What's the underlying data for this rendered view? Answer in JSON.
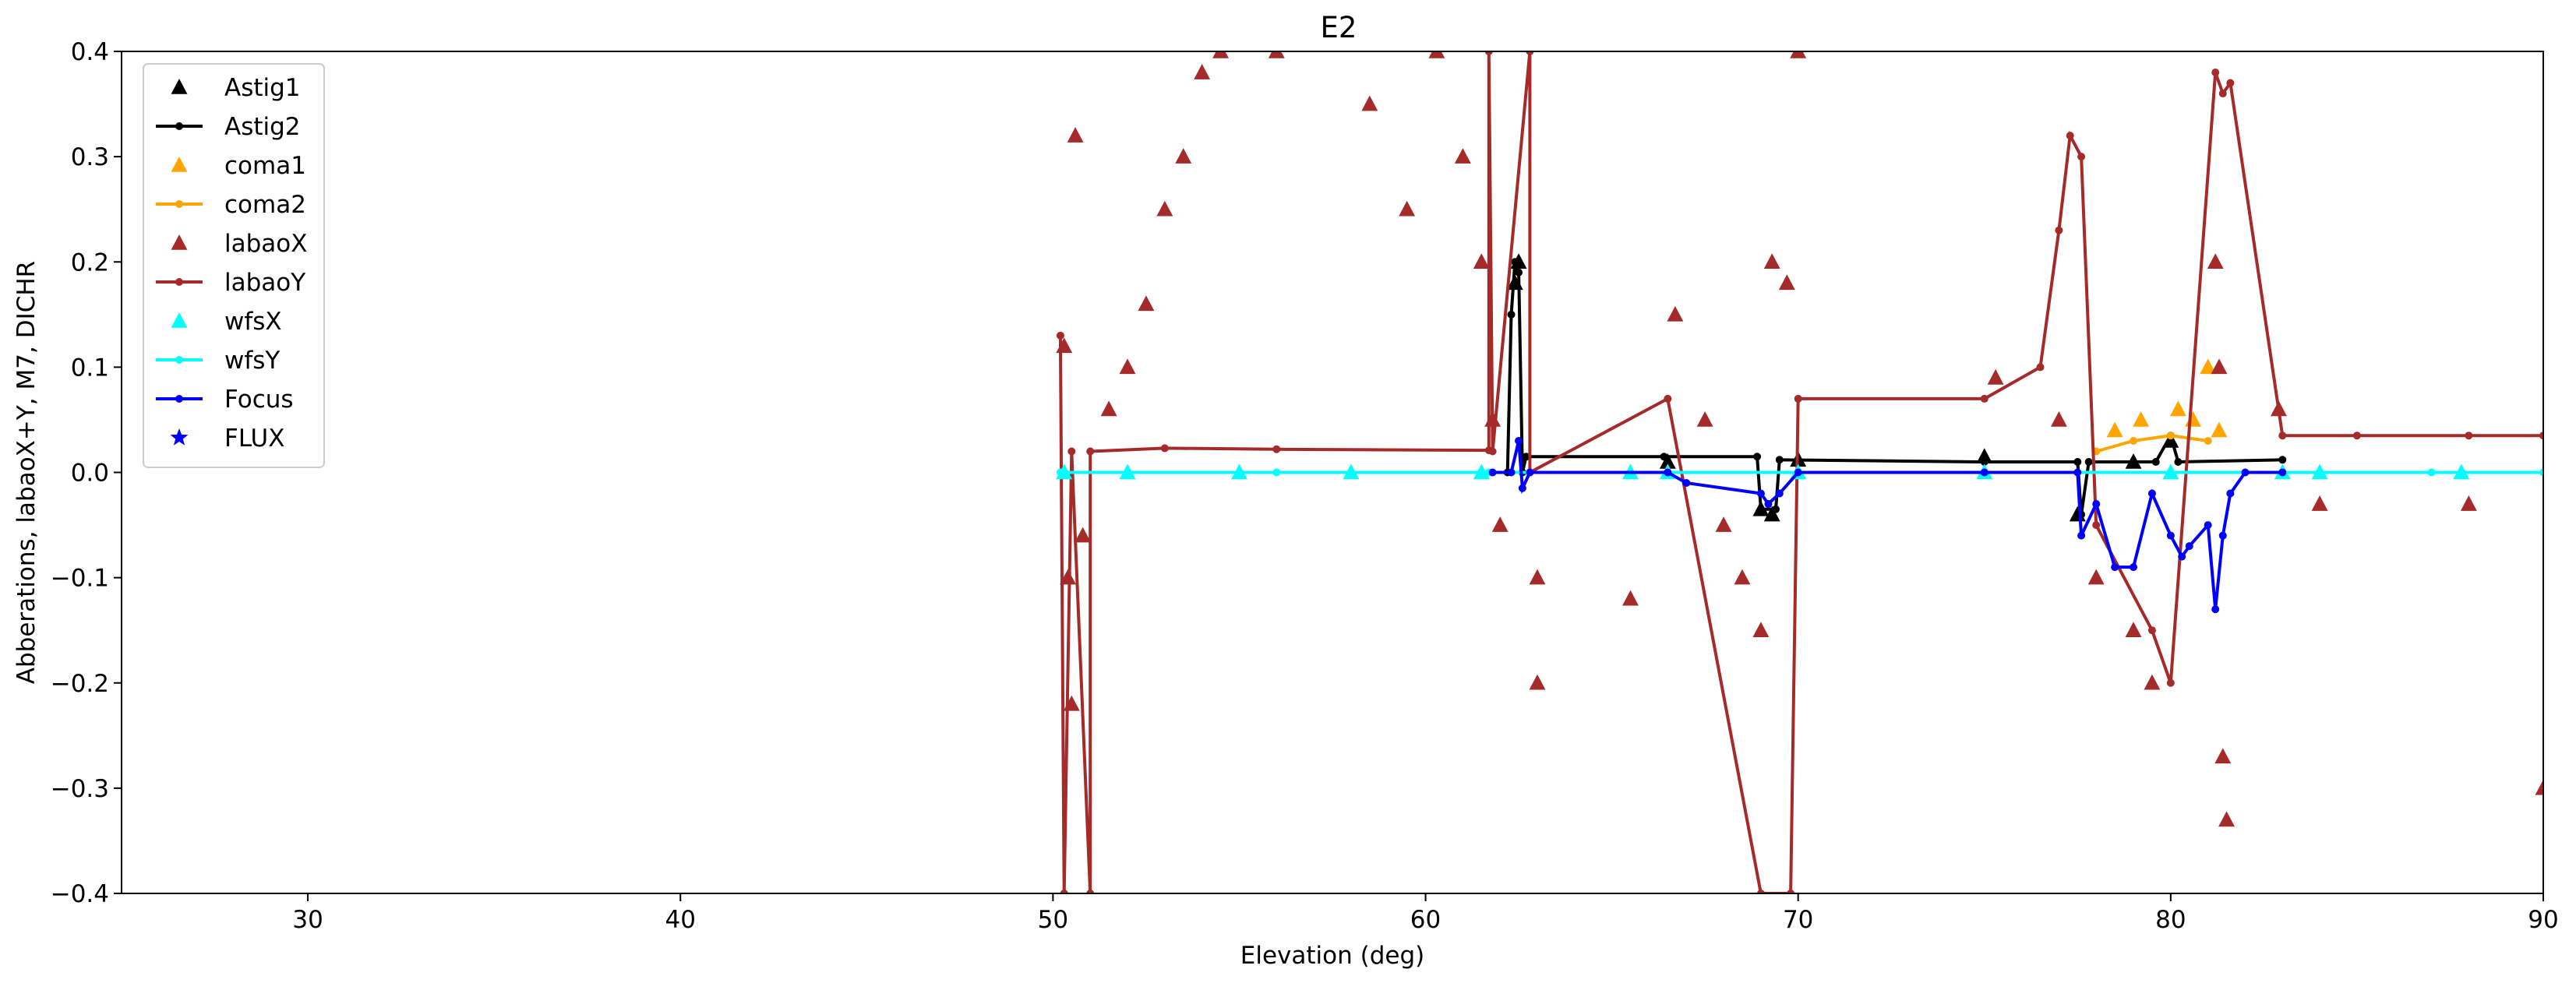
{
  "chart_data": {
    "type": "scatter",
    "title": "E2",
    "xlabel": "Elevation (deg)",
    "ylabel": "Abberations, labaoX+Y, M7, DICHR",
    "xlim": [
      25,
      90
    ],
    "ylim": [
      -0.4,
      0.4
    ],
    "xticks": [
      30,
      40,
      50,
      60,
      70,
      80,
      90
    ],
    "yticks": [
      -0.4,
      -0.3,
      -0.2,
      -0.1,
      0.0,
      0.1,
      0.2,
      0.3,
      0.4
    ],
    "ytick_labels": [
      "−0.4",
      "−0.3",
      "−0.2",
      "−0.1",
      "0.0",
      "0.1",
      "0.2",
      "0.3",
      "0.4"
    ],
    "grid": false,
    "legend_position": "top-left",
    "series": [
      {
        "name": "Astig1",
        "marker": "triangle",
        "line": false,
        "color": "#000000",
        "points": [
          [
            62.4,
            0.18
          ],
          [
            62.5,
            0.2
          ],
          [
            69.0,
            -0.035
          ],
          [
            69.3,
            -0.04
          ],
          [
            77.5,
            -0.04
          ],
          [
            79.0,
            0.01
          ],
          [
            80.0,
            0.03
          ],
          [
            66.5,
            0.01
          ],
          [
            70.0,
            0.012
          ],
          [
            75.0,
            0.015
          ]
        ]
      },
      {
        "name": "Astig2",
        "marker": "dot",
        "line": true,
        "color": "#000000",
        "points": [
          [
            62.2,
            0.0
          ],
          [
            62.3,
            0.15
          ],
          [
            62.4,
            0.2
          ],
          [
            62.5,
            0.19
          ],
          [
            62.6,
            0.0
          ],
          [
            62.7,
            0.015
          ],
          [
            66.4,
            0.015
          ],
          [
            68.9,
            0.015
          ],
          [
            69.0,
            -0.035
          ],
          [
            69.4,
            -0.035
          ],
          [
            69.5,
            0.012
          ],
          [
            75.0,
            0.01
          ],
          [
            77.5,
            0.01
          ],
          [
            77.6,
            -0.04
          ],
          [
            77.8,
            0.01
          ],
          [
            79.6,
            0.01
          ],
          [
            80.0,
            0.035
          ],
          [
            80.2,
            0.01
          ],
          [
            83.0,
            0.012
          ]
        ]
      },
      {
        "name": "coma1",
        "marker": "triangle",
        "line": false,
        "color": "#ffa500",
        "points": [
          [
            78.5,
            0.04
          ],
          [
            79.2,
            0.05
          ],
          [
            80.2,
            0.06
          ],
          [
            80.6,
            0.05
          ],
          [
            81.0,
            0.1
          ],
          [
            81.3,
            0.04
          ]
        ]
      },
      {
        "name": "coma2",
        "marker": "dot",
        "line": true,
        "color": "#ffa500",
        "points": [
          [
            78.0,
            0.02
          ],
          [
            79.0,
            0.03
          ],
          [
            80.0,
            0.035
          ],
          [
            81.0,
            0.03
          ]
        ]
      },
      {
        "name": "labaoX",
        "marker": "triangle",
        "line": false,
        "color": "#a52a2a",
        "points": [
          [
            50.3,
            0.12
          ],
          [
            50.4,
            -0.1
          ],
          [
            50.5,
            -0.22
          ],
          [
            50.6,
            0.32
          ],
          [
            50.8,
            -0.06
          ],
          [
            51.5,
            0.06
          ],
          [
            52.0,
            0.1
          ],
          [
            52.5,
            0.16
          ],
          [
            53.0,
            0.25
          ],
          [
            53.5,
            0.3
          ],
          [
            54.0,
            0.38
          ],
          [
            54.5,
            0.4
          ],
          [
            56.0,
            0.4
          ],
          [
            58.5,
            0.35
          ],
          [
            59.5,
            0.25
          ],
          [
            60.3,
            0.4
          ],
          [
            61.0,
            0.3
          ],
          [
            61.5,
            0.2
          ],
          [
            61.8,
            0.05
          ],
          [
            62.0,
            -0.05
          ],
          [
            63.0,
            -0.1
          ],
          [
            63.0,
            -0.2
          ],
          [
            65.5,
            -0.12
          ],
          [
            66.7,
            0.15
          ],
          [
            67.5,
            0.05
          ],
          [
            68.0,
            -0.05
          ],
          [
            68.5,
            -0.1
          ],
          [
            69.0,
            -0.15
          ],
          [
            69.3,
            0.2
          ],
          [
            69.7,
            0.18
          ],
          [
            70.0,
            0.4
          ],
          [
            75.3,
            0.09
          ],
          [
            77.0,
            0.05
          ],
          [
            78.0,
            -0.1
          ],
          [
            79.0,
            -0.15
          ],
          [
            79.5,
            -0.2
          ],
          [
            81.2,
            0.2
          ],
          [
            81.3,
            0.1
          ],
          [
            81.4,
            -0.27
          ],
          [
            81.5,
            -0.33
          ],
          [
            82.9,
            0.06
          ],
          [
            84.0,
            -0.03
          ],
          [
            88.0,
            -0.03
          ],
          [
            90.0,
            -0.3
          ]
        ]
      },
      {
        "name": "labaoY",
        "marker": "dot",
        "line": true,
        "color": "#a52a2a",
        "points": [
          [
            50.2,
            0.13
          ],
          [
            50.3,
            -0.4
          ],
          [
            50.5,
            0.02
          ],
          [
            51.0,
            -0.4
          ],
          [
            51.0,
            0.02
          ],
          [
            53.0,
            0.023
          ],
          [
            56.0,
            0.022
          ],
          [
            61.7,
            0.021
          ],
          [
            61.7,
            0.4
          ],
          [
            61.8,
            0.02
          ],
          [
            62.8,
            0.4
          ],
          [
            62.8,
            0.0
          ],
          [
            66.5,
            0.07
          ],
          [
            69.0,
            -0.4
          ],
          [
            69.8,
            -0.4
          ],
          [
            70.0,
            0.07
          ],
          [
            75.0,
            0.07
          ],
          [
            76.5,
            0.1
          ],
          [
            77.0,
            0.23
          ],
          [
            77.3,
            0.32
          ],
          [
            77.6,
            0.3
          ],
          [
            78.0,
            -0.05
          ],
          [
            79.5,
            -0.15
          ],
          [
            80.0,
            -0.2
          ],
          [
            81.2,
            0.38
          ],
          [
            81.4,
            0.36
          ],
          [
            81.6,
            0.37
          ],
          [
            83.0,
            0.035
          ],
          [
            85.0,
            0.035
          ],
          [
            88.0,
            0.035
          ],
          [
            90.0,
            0.035
          ]
        ]
      },
      {
        "name": "wfsX",
        "marker": "triangle",
        "line": false,
        "color": "#00ffff",
        "points": [
          [
            50.3,
            0.0
          ],
          [
            52.0,
            0.0
          ],
          [
            55.0,
            0.0
          ],
          [
            58.0,
            0.0
          ],
          [
            61.5,
            0.0
          ],
          [
            65.5,
            0.0
          ],
          [
            66.5,
            0.0
          ],
          [
            70.0,
            0.0
          ],
          [
            75.0,
            0.0
          ],
          [
            80.0,
            0.0
          ],
          [
            83.0,
            0.0
          ],
          [
            84.0,
            0.0
          ],
          [
            87.8,
            0.0
          ]
        ]
      },
      {
        "name": "wfsY",
        "marker": "dot",
        "line": true,
        "color": "#00ffff",
        "points": [
          [
            50.2,
            0.0
          ],
          [
            52.0,
            0.0
          ],
          [
            56.0,
            0.0
          ],
          [
            61.7,
            0.0
          ],
          [
            66.5,
            0.0
          ],
          [
            70.0,
            0.0
          ],
          [
            75.0,
            0.0
          ],
          [
            80.0,
            0.0
          ],
          [
            83.0,
            0.0
          ],
          [
            84.0,
            0.0
          ],
          [
            87.0,
            0.0
          ],
          [
            90.0,
            0.0
          ]
        ]
      },
      {
        "name": "Focus",
        "marker": "dot",
        "line": true,
        "color": "#0000ff",
        "points": [
          [
            61.8,
            0.0
          ],
          [
            62.3,
            0.0
          ],
          [
            62.5,
            0.03
          ],
          [
            62.6,
            -0.015
          ],
          [
            62.8,
            0.0
          ],
          [
            66.5,
            0.0
          ],
          [
            67.0,
            -0.01
          ],
          [
            69.0,
            -0.02
          ],
          [
            69.2,
            -0.03
          ],
          [
            69.5,
            -0.02
          ],
          [
            70.0,
            0.0
          ],
          [
            75.0,
            0.0
          ],
          [
            77.5,
            0.0
          ],
          [
            77.6,
            -0.06
          ],
          [
            78.0,
            -0.03
          ],
          [
            78.5,
            -0.09
          ],
          [
            79.0,
            -0.09
          ],
          [
            79.5,
            -0.02
          ],
          [
            80.0,
            -0.06
          ],
          [
            80.3,
            -0.08
          ],
          [
            80.5,
            -0.07
          ],
          [
            81.0,
            -0.05
          ],
          [
            81.2,
            -0.13
          ],
          [
            81.4,
            -0.06
          ],
          [
            81.6,
            -0.02
          ],
          [
            82.0,
            0.0
          ],
          [
            83.0,
            0.0
          ]
        ]
      },
      {
        "name": "FLUX",
        "marker": "star",
        "line": false,
        "color": "#0000ff",
        "points": []
      }
    ]
  }
}
